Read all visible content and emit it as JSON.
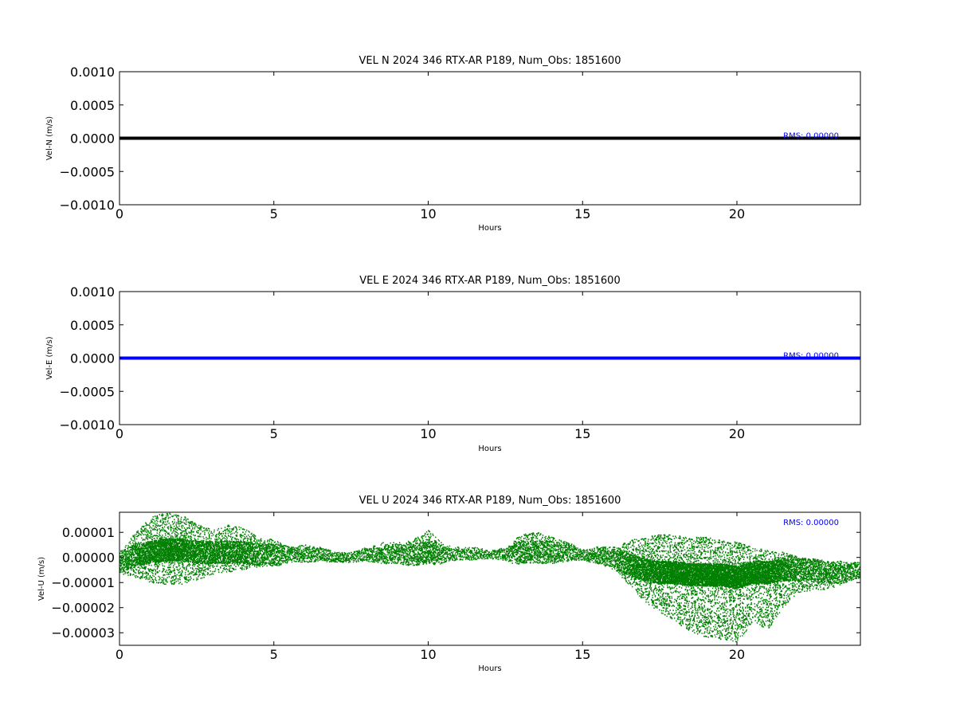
{
  "chart_data": [
    {
      "type": "line",
      "title": "VEL N 2024 346 RTX-AR  P189, Num_Obs: 1851600",
      "xlabel": "Hours",
      "ylabel": "Vel-N (m/s)",
      "xlim": [
        0,
        24
      ],
      "ylim": [
        -0.001,
        0.001
      ],
      "x_ticks": [
        0,
        5,
        10,
        15,
        20
      ],
      "x_tick_labels": [
        "0",
        "5",
        "10",
        "15",
        "20"
      ],
      "y_ticks": [
        0.001,
        0.0005,
        0.0,
        -0.0005,
        -0.001
      ],
      "y_tick_labels": [
        "0.0010",
        "0.0005",
        "0.0000",
        "−0.0005",
        "−0.0010"
      ],
      "series": [
        {
          "color": "#000000",
          "x": [
            0,
            24
          ],
          "y": [
            0.0,
            0.0
          ]
        }
      ],
      "annotation": {
        "text": "RMS:  0.00000",
        "color": "#0000ff",
        "x": 21.5,
        "y": 0.0
      },
      "grid": false
    },
    {
      "type": "line",
      "title": "VEL E 2024 346 RTX-AR  P189, Num_Obs: 1851600",
      "xlabel": "Hours",
      "ylabel": "Vel-E (m/s)",
      "xlim": [
        0,
        24
      ],
      "ylim": [
        -0.001,
        0.001
      ],
      "x_ticks": [
        0,
        5,
        10,
        15,
        20
      ],
      "x_tick_labels": [
        "0",
        "5",
        "10",
        "15",
        "20"
      ],
      "y_ticks": [
        0.001,
        0.0005,
        0.0,
        -0.0005,
        -0.001
      ],
      "y_tick_labels": [
        "0.0010",
        "0.0005",
        "0.0000",
        "−0.0005",
        "−0.0010"
      ],
      "series": [
        {
          "color": "#0000ff",
          "x": [
            0,
            24
          ],
          "y": [
            0.0,
            0.0
          ]
        }
      ],
      "annotation": {
        "text": "RMS:  0.00000",
        "color": "#0000ff",
        "x": 21.5,
        "y": 0.0
      },
      "grid": false
    },
    {
      "type": "scatter",
      "title": "VEL U 2024 346 RTX-AR  P189, Num_Obs: 1851600",
      "xlabel": "Hours",
      "ylabel": "Vel-U (m/s)",
      "xlim": [
        0,
        24
      ],
      "ylim": [
        -3.5e-05,
        1.8e-05
      ],
      "x_ticks": [
        0,
        5,
        10,
        15,
        20
      ],
      "x_tick_labels": [
        "0",
        "5",
        "10",
        "15",
        "20"
      ],
      "y_ticks": [
        1e-05,
        0.0,
        -1e-05,
        -2e-05,
        -3e-05
      ],
      "y_tick_labels": [
        "0.00001",
        "0.00000",
        "−0.00001",
        "−0.00002",
        "−0.00003"
      ],
      "series": [
        {
          "color": "#008000",
          "envelope": {
            "x": [
              0,
              0.5,
              1,
              1.5,
              2,
              2.5,
              3,
              3.5,
              4,
              4.5,
              5,
              5.5,
              6,
              6.5,
              7,
              7.5,
              8,
              8.5,
              9,
              9.5,
              10,
              10.5,
              11,
              11.5,
              12,
              12.5,
              13,
              13.5,
              14,
              14.5,
              15,
              15.5,
              16,
              16.5,
              17,
              17.5,
              18,
              18.5,
              19,
              19.5,
              20,
              20.5,
              21,
              21.5,
              22,
              22.5,
              23,
              23.5,
              24
            ],
            "upper": [
              2e-06,
              1e-05,
              1.6e-05,
              1.8e-05,
              1.7e-05,
              1.3e-05,
              1.1e-05,
              1.3e-05,
              1.2e-05,
              8e-06,
              7e-06,
              4e-06,
              5e-06,
              4e-06,
              2e-06,
              2e-06,
              4e-06,
              6e-06,
              6e-06,
              7e-06,
              1.1e-05,
              5e-06,
              4e-06,
              4e-06,
              3e-06,
              4e-06,
              9e-06,
              1e-05,
              8e-06,
              6e-06,
              3e-06,
              4e-06,
              3e-06,
              7e-06,
              8e-06,
              9e-06,
              9e-06,
              8e-06,
              8e-06,
              7e-06,
              6e-06,
              4e-06,
              3e-06,
              2e-06,
              0.0,
              -1e-06,
              -2e-06,
              -2e-06,
              -2e-06
            ],
            "lower": [
              -7e-06,
              -8e-06,
              -1e-05,
              -1.1e-05,
              -1.1e-05,
              -9e-06,
              -7e-06,
              -6e-06,
              -5e-06,
              -4e-06,
              -3e-06,
              -2e-06,
              -1e-06,
              -1e-06,
              -2e-06,
              -2e-06,
              -1e-06,
              -1e-06,
              -1e-06,
              -2e-06,
              -2e-06,
              -1e-06,
              0.0,
              0.0,
              0.0,
              -1e-06,
              -2e-06,
              -1e-06,
              -1e-06,
              -1e-06,
              -1e-06,
              -3e-06,
              -5e-06,
              -1.1e-05,
              -1.8e-05,
              -2.2e-05,
              -2.6e-05,
              -3e-05,
              -3.2e-05,
              -3.3e-05,
              -3.4e-05,
              -2.6e-05,
              -2.9e-05,
              -2e-05,
              -1.4e-05,
              -1.3e-05,
              -1.3e-05,
              -1e-05,
              -8e-06
            ],
            "center": [
              -2e-06,
              1e-06,
              2e-06,
              3e-06,
              3e-06,
              2e-06,
              2e-06,
              2e-06,
              2e-06,
              1e-06,
              1e-06,
              1e-06,
              1e-06,
              1e-06,
              0.0,
              0.0,
              1e-06,
              1e-06,
              1e-06,
              1e-06,
              2e-06,
              1e-06,
              1e-06,
              1e-06,
              1e-06,
              1e-06,
              2e-06,
              2e-06,
              2e-06,
              2e-06,
              1e-06,
              1e-06,
              0.0,
              -3e-06,
              -5e-06,
              -6e-06,
              -6e-06,
              -7e-06,
              -7e-06,
              -7e-06,
              -8e-06,
              -6e-06,
              -6e-06,
              -5e-06,
              -5e-06,
              -5e-06,
              -6e-06,
              -6e-06,
              -5e-06
            ]
          }
        }
      ],
      "annotation": {
        "text": "RMS:  0.00000",
        "color": "#0000ff",
        "x": 21.5,
        "y": 1.3e-05
      },
      "grid": false
    }
  ]
}
